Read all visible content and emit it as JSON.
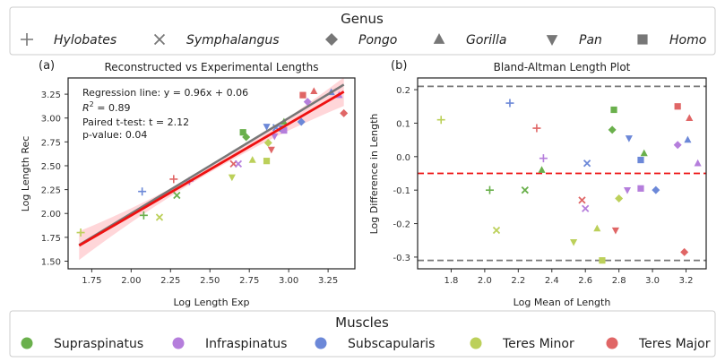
{
  "genus_legend": {
    "title": "Genus",
    "items": [
      {
        "label": "Hylobates",
        "marker": "plus"
      },
      {
        "label": "Symphalangus",
        "marker": "x"
      },
      {
        "label": "Pongo",
        "marker": "diamond"
      },
      {
        "label": "Gorilla",
        "marker": "triangle-up"
      },
      {
        "label": "Pan",
        "marker": "triangle-down"
      },
      {
        "label": "Homo",
        "marker": "square"
      }
    ]
  },
  "muscle_legend": {
    "title": "Muscles",
    "items": [
      {
        "label": "Supraspinatus",
        "color": "#6ab04c"
      },
      {
        "label": "Infraspinatus",
        "color": "#b57edc"
      },
      {
        "label": "Subscapularis",
        "color": "#6c88d8"
      },
      {
        "label": "Teres Minor",
        "color": "#bcd05a"
      },
      {
        "label": "Teres Major",
        "color": "#e06666"
      }
    ]
  },
  "panel_a": {
    "tag": "(a)",
    "annotation": {
      "line1": "Regression line: y = 0.96x + 0.06",
      "line2_pre": "R",
      "line2_sup": "2",
      "line2_post": " = 0.89",
      "line3": "Paired t-test: t = 2.12",
      "line4": "p-value: 0.04"
    }
  },
  "panel_b": {
    "tag": "(b)"
  },
  "chart_data": [
    {
      "type": "scatter",
      "title": "Reconstructed vs Experimental Lengths",
      "xlabel": "Log Length Exp",
      "ylabel": "Log Length Rec",
      "xlim": [
        1.6,
        3.42
      ],
      "ylim": [
        1.42,
        3.42
      ],
      "xticks": [
        "1.75",
        "2.00",
        "2.25",
        "2.50",
        "2.75",
        "3.00",
        "3.25"
      ],
      "yticks": [
        "1.50",
        "1.75",
        "2.00",
        "2.25",
        "2.50",
        "2.75",
        "3.00",
        "3.25"
      ],
      "regression": {
        "slope": 0.96,
        "intercept": 0.06,
        "x_range": [
          1.67,
          3.35
        ],
        "color": "#ee1111"
      },
      "identity_line": {
        "x_range": [
          1.67,
          3.35
        ],
        "color": "#777777"
      },
      "points": [
        {
          "x": 1.68,
          "y": 1.8,
          "marker": "plus",
          "color": "#bcd05a"
        },
        {
          "x": 2.07,
          "y": 2.23,
          "marker": "plus",
          "color": "#6c88d8"
        },
        {
          "x": 2.27,
          "y": 2.36,
          "marker": "plus",
          "color": "#e06666"
        },
        {
          "x": 2.37,
          "y": 2.34,
          "marker": "plus",
          "color": "#b57edc"
        },
        {
          "x": 2.08,
          "y": 1.98,
          "marker": "plus",
          "color": "#6ab04c"
        },
        {
          "x": 2.18,
          "y": 1.96,
          "marker": "x",
          "color": "#bcd05a"
        },
        {
          "x": 2.29,
          "y": 2.19,
          "marker": "x",
          "color": "#6ab04c"
        },
        {
          "x": 2.65,
          "y": 2.52,
          "marker": "x",
          "color": "#e06666"
        },
        {
          "x": 2.68,
          "y": 2.52,
          "marker": "x",
          "color": "#b57edc"
        },
        {
          "x": 2.92,
          "y": 2.9,
          "marker": "x",
          "color": "#6c88d8"
        },
        {
          "x": 2.73,
          "y": 2.8,
          "marker": "diamond",
          "color": "#6ab04c"
        },
        {
          "x": 2.87,
          "y": 2.74,
          "marker": "diamond",
          "color": "#bcd05a"
        },
        {
          "x": 3.12,
          "y": 3.17,
          "marker": "diamond",
          "color": "#b57edc"
        },
        {
          "x": 3.35,
          "y": 3.05,
          "marker": "diamond",
          "color": "#e06666"
        },
        {
          "x": 3.08,
          "y": 2.96,
          "marker": "diamond",
          "color": "#6c88d8"
        },
        {
          "x": 2.77,
          "y": 2.56,
          "marker": "triangle-up",
          "color": "#bcd05a"
        },
        {
          "x": 2.97,
          "y": 2.96,
          "marker": "triangle-up",
          "color": "#6ab04c"
        },
        {
          "x": 3.16,
          "y": 3.28,
          "marker": "triangle-up",
          "color": "#e06666"
        },
        {
          "x": 3.27,
          "y": 3.27,
          "marker": "triangle-up",
          "color": "#6c88d8"
        },
        {
          "x": 3.32,
          "y": 3.24,
          "marker": "triangle-up",
          "color": "#b57edc"
        },
        {
          "x": 2.64,
          "y": 2.38,
          "marker": "triangle-down",
          "color": "#bcd05a"
        },
        {
          "x": 2.89,
          "y": 2.67,
          "marker": "triangle-down",
          "color": "#e06666"
        },
        {
          "x": 2.86,
          "y": 2.91,
          "marker": "triangle-down",
          "color": "#6c88d8"
        },
        {
          "x": 2.91,
          "y": 2.81,
          "marker": "triangle-down",
          "color": "#b57edc"
        },
        {
          "x": 2.71,
          "y": 2.85,
          "marker": "square",
          "color": "#6ab04c"
        },
        {
          "x": 2.86,
          "y": 2.55,
          "marker": "square",
          "color": "#bcd05a"
        },
        {
          "x": 2.96,
          "y": 2.89,
          "marker": "square",
          "color": "#6c88d8"
        },
        {
          "x": 2.97,
          "y": 2.87,
          "marker": "square",
          "color": "#b57edc"
        },
        {
          "x": 3.09,
          "y": 3.24,
          "marker": "square",
          "color": "#e06666"
        }
      ]
    },
    {
      "type": "scatter",
      "title": "Bland-Altman Length Plot",
      "xlabel": "Log Mean of Length",
      "ylabel": "Log Difference in Length",
      "xlim": [
        1.6,
        3.32
      ],
      "ylim": [
        -0.335,
        0.235
      ],
      "xticks": [
        "1.8",
        "2.0",
        "2.2",
        "2.4",
        "2.6",
        "2.8",
        "3.0",
        "3.2"
      ],
      "yticks": [
        "-0.3",
        "-0.2",
        "-0.1",
        "0.0",
        "0.1",
        "0.2"
      ],
      "mean_line": {
        "y": -0.05,
        "color": "#ee1111"
      },
      "limit_lines": [
        {
          "y": 0.21,
          "color": "#777777"
        },
        {
          "y": -0.31,
          "color": "#777777"
        }
      ],
      "points": [
        {
          "x": 1.74,
          "y": 0.11,
          "marker": "plus",
          "color": "#bcd05a"
        },
        {
          "x": 2.15,
          "y": 0.16,
          "marker": "plus",
          "color": "#6c88d8"
        },
        {
          "x": 2.31,
          "y": 0.085,
          "marker": "plus",
          "color": "#e06666"
        },
        {
          "x": 2.35,
          "y": -0.005,
          "marker": "plus",
          "color": "#b57edc"
        },
        {
          "x": 2.03,
          "y": -0.1,
          "marker": "plus",
          "color": "#6ab04c"
        },
        {
          "x": 2.07,
          "y": -0.22,
          "marker": "x",
          "color": "#bcd05a"
        },
        {
          "x": 2.24,
          "y": -0.1,
          "marker": "x",
          "color": "#6ab04c"
        },
        {
          "x": 2.58,
          "y": -0.13,
          "marker": "x",
          "color": "#e06666"
        },
        {
          "x": 2.6,
          "y": -0.155,
          "marker": "x",
          "color": "#b57edc"
        },
        {
          "x": 2.61,
          "y": -0.02,
          "marker": "x",
          "color": "#6c88d8"
        },
        {
          "x": 2.76,
          "y": 0.08,
          "marker": "diamond",
          "color": "#6ab04c"
        },
        {
          "x": 2.8,
          "y": -0.125,
          "marker": "diamond",
          "color": "#bcd05a"
        },
        {
          "x": 3.15,
          "y": 0.035,
          "marker": "diamond",
          "color": "#b57edc"
        },
        {
          "x": 3.19,
          "y": -0.285,
          "marker": "diamond",
          "color": "#e06666"
        },
        {
          "x": 3.02,
          "y": -0.1,
          "marker": "diamond",
          "color": "#6c88d8"
        },
        {
          "x": 2.34,
          "y": -0.04,
          "marker": "triangle-up",
          "color": "#6ab04c"
        },
        {
          "x": 2.67,
          "y": -0.215,
          "marker": "triangle-up",
          "color": "#bcd05a"
        },
        {
          "x": 2.95,
          "y": 0.01,
          "marker": "triangle-up",
          "color": "#6ab04c"
        },
        {
          "x": 3.22,
          "y": 0.115,
          "marker": "triangle-up",
          "color": "#e06666"
        },
        {
          "x": 3.21,
          "y": 0.05,
          "marker": "triangle-up",
          "color": "#6c88d8"
        },
        {
          "x": 3.27,
          "y": -0.02,
          "marker": "triangle-up",
          "color": "#b57edc"
        },
        {
          "x": 2.53,
          "y": -0.255,
          "marker": "triangle-down",
          "color": "#bcd05a"
        },
        {
          "x": 2.78,
          "y": -0.22,
          "marker": "triangle-down",
          "color": "#e06666"
        },
        {
          "x": 2.86,
          "y": 0.055,
          "marker": "triangle-down",
          "color": "#6c88d8"
        },
        {
          "x": 2.85,
          "y": -0.1,
          "marker": "triangle-down",
          "color": "#b57edc"
        },
        {
          "x": 2.77,
          "y": 0.14,
          "marker": "square",
          "color": "#6ab04c"
        },
        {
          "x": 2.7,
          "y": -0.31,
          "marker": "square",
          "color": "#bcd05a"
        },
        {
          "x": 2.93,
          "y": -0.01,
          "marker": "square",
          "color": "#6c88d8"
        },
        {
          "x": 2.93,
          "y": -0.095,
          "marker": "square",
          "color": "#b57edc"
        },
        {
          "x": 3.15,
          "y": 0.15,
          "marker": "square",
          "color": "#e06666"
        }
      ]
    }
  ]
}
